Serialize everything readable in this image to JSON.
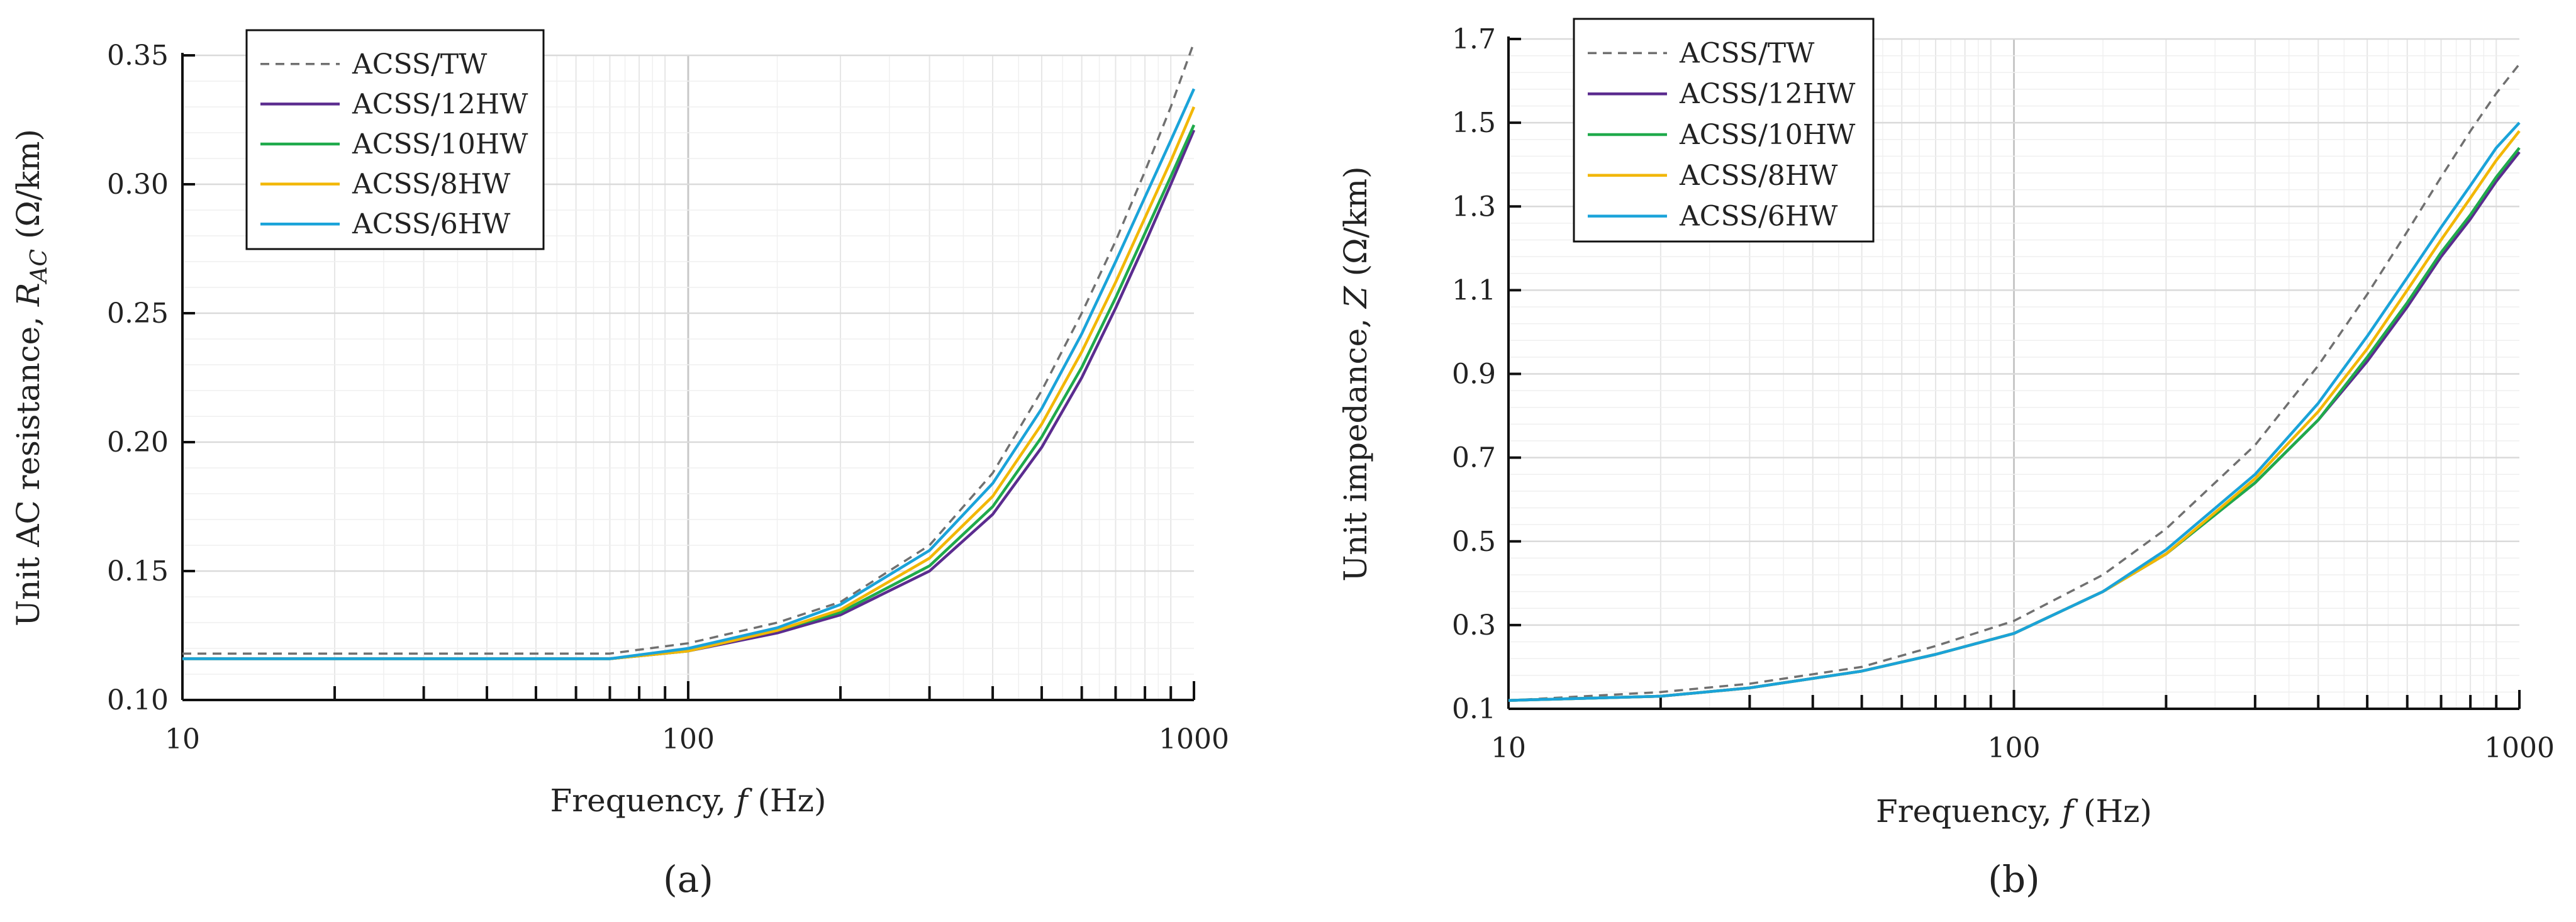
{
  "chart_data": [
    {
      "type": "line",
      "panel_label": "(a)",
      "xlabel_prefix": "Frequency, ",
      "xlabel_var": "f",
      "xlabel_unit": " (Hz)",
      "ylabel_prefix": "Unit AC resistance, ",
      "ylabel_var": "R",
      "ylabel_sub": "AC",
      "ylabel_unit": " (Ω/km)",
      "x_scale": "log",
      "xlim": [
        10,
        1000
      ],
      "ylim": [
        0.1,
        0.35
      ],
      "x_ticks": [
        "10",
        "100",
        "1000"
      ],
      "y_ticks": [
        "0.10",
        "0.15",
        "0.20",
        "0.25",
        "0.30",
        "0.35"
      ],
      "grid": true,
      "legend_position": "top-left",
      "x": [
        10,
        20,
        40,
        70,
        100,
        150,
        200,
        300,
        400,
        500,
        600,
        700,
        800,
        900,
        1000
      ],
      "series": [
        {
          "name": "ACSS/TW",
          "color": "#707070",
          "dashed": true,
          "values": [
            0.118,
            0.118,
            0.118,
            0.118,
            0.122,
            0.13,
            0.138,
            0.16,
            0.188,
            0.22,
            0.25,
            0.278,
            0.305,
            0.33,
            0.355
          ]
        },
        {
          "name": "ACSS/12HW",
          "color": "#5b2c8f",
          "dashed": false,
          "values": [
            0.116,
            0.116,
            0.116,
            0.116,
            0.119,
            0.126,
            0.133,
            0.15,
            0.172,
            0.198,
            0.225,
            0.252,
            0.277,
            0.3,
            0.321
          ]
        },
        {
          "name": "ACSS/10HW",
          "color": "#1faa4b",
          "dashed": false,
          "values": [
            0.116,
            0.116,
            0.116,
            0.116,
            0.119,
            0.127,
            0.134,
            0.152,
            0.175,
            0.202,
            0.229,
            0.256,
            0.281,
            0.303,
            0.323
          ]
        },
        {
          "name": "ACSS/8HW",
          "color": "#f2b705",
          "dashed": false,
          "values": [
            0.116,
            0.116,
            0.116,
            0.116,
            0.119,
            0.127,
            0.135,
            0.155,
            0.179,
            0.207,
            0.235,
            0.262,
            0.287,
            0.309,
            0.33
          ]
        },
        {
          "name": "ACSS/6HW",
          "color": "#1aa3d9",
          "dashed": false,
          "values": [
            0.116,
            0.116,
            0.116,
            0.116,
            0.12,
            0.128,
            0.137,
            0.158,
            0.184,
            0.213,
            0.242,
            0.27,
            0.295,
            0.317,
            0.337
          ]
        }
      ]
    },
    {
      "type": "line",
      "panel_label": "(b)",
      "xlabel_prefix": "Frequency, ",
      "xlabel_var": "f",
      "xlabel_unit": " (Hz)",
      "ylabel_prefix": "Unit impedance, ",
      "ylabel_var": "Z",
      "ylabel_sub": "",
      "ylabel_unit": " (Ω/km)",
      "x_scale": "log",
      "xlim": [
        10,
        1000
      ],
      "ylim": [
        0.1,
        1.7
      ],
      "x_ticks": [
        "10",
        "100",
        "1000"
      ],
      "y_ticks": [
        "0.1",
        "0.3",
        "0.5",
        "0.7",
        "0.9",
        "1.1",
        "1.3",
        "1.5",
        "1.7"
      ],
      "grid": true,
      "legend_position": "top-left",
      "x": [
        10,
        20,
        30,
        50,
        70,
        100,
        150,
        200,
        300,
        400,
        500,
        600,
        700,
        800,
        900,
        1000
      ],
      "series": [
        {
          "name": "ACSS/TW",
          "color": "#707070",
          "dashed": true,
          "values": [
            0.12,
            0.14,
            0.16,
            0.2,
            0.25,
            0.31,
            0.42,
            0.53,
            0.73,
            0.92,
            1.09,
            1.24,
            1.37,
            1.48,
            1.57,
            1.64
          ]
        },
        {
          "name": "ACSS/12HW",
          "color": "#5b2c8f",
          "dashed": false,
          "values": [
            0.12,
            0.13,
            0.15,
            0.19,
            0.23,
            0.28,
            0.38,
            0.47,
            0.64,
            0.79,
            0.93,
            1.06,
            1.18,
            1.27,
            1.36,
            1.43
          ]
        },
        {
          "name": "ACSS/10HW",
          "color": "#1faa4b",
          "dashed": false,
          "values": [
            0.12,
            0.13,
            0.15,
            0.19,
            0.23,
            0.28,
            0.38,
            0.47,
            0.64,
            0.79,
            0.94,
            1.07,
            1.19,
            1.28,
            1.37,
            1.44
          ]
        },
        {
          "name": "ACSS/8HW",
          "color": "#f2b705",
          "dashed": false,
          "values": [
            0.12,
            0.13,
            0.15,
            0.19,
            0.23,
            0.28,
            0.38,
            0.47,
            0.65,
            0.81,
            0.96,
            1.1,
            1.22,
            1.32,
            1.41,
            1.48
          ]
        },
        {
          "name": "ACSS/6HW",
          "color": "#1aa3d9",
          "dashed": false,
          "values": [
            0.12,
            0.13,
            0.15,
            0.19,
            0.23,
            0.28,
            0.38,
            0.48,
            0.66,
            0.83,
            0.99,
            1.13,
            1.25,
            1.35,
            1.44,
            1.5
          ]
        }
      ]
    }
  ]
}
